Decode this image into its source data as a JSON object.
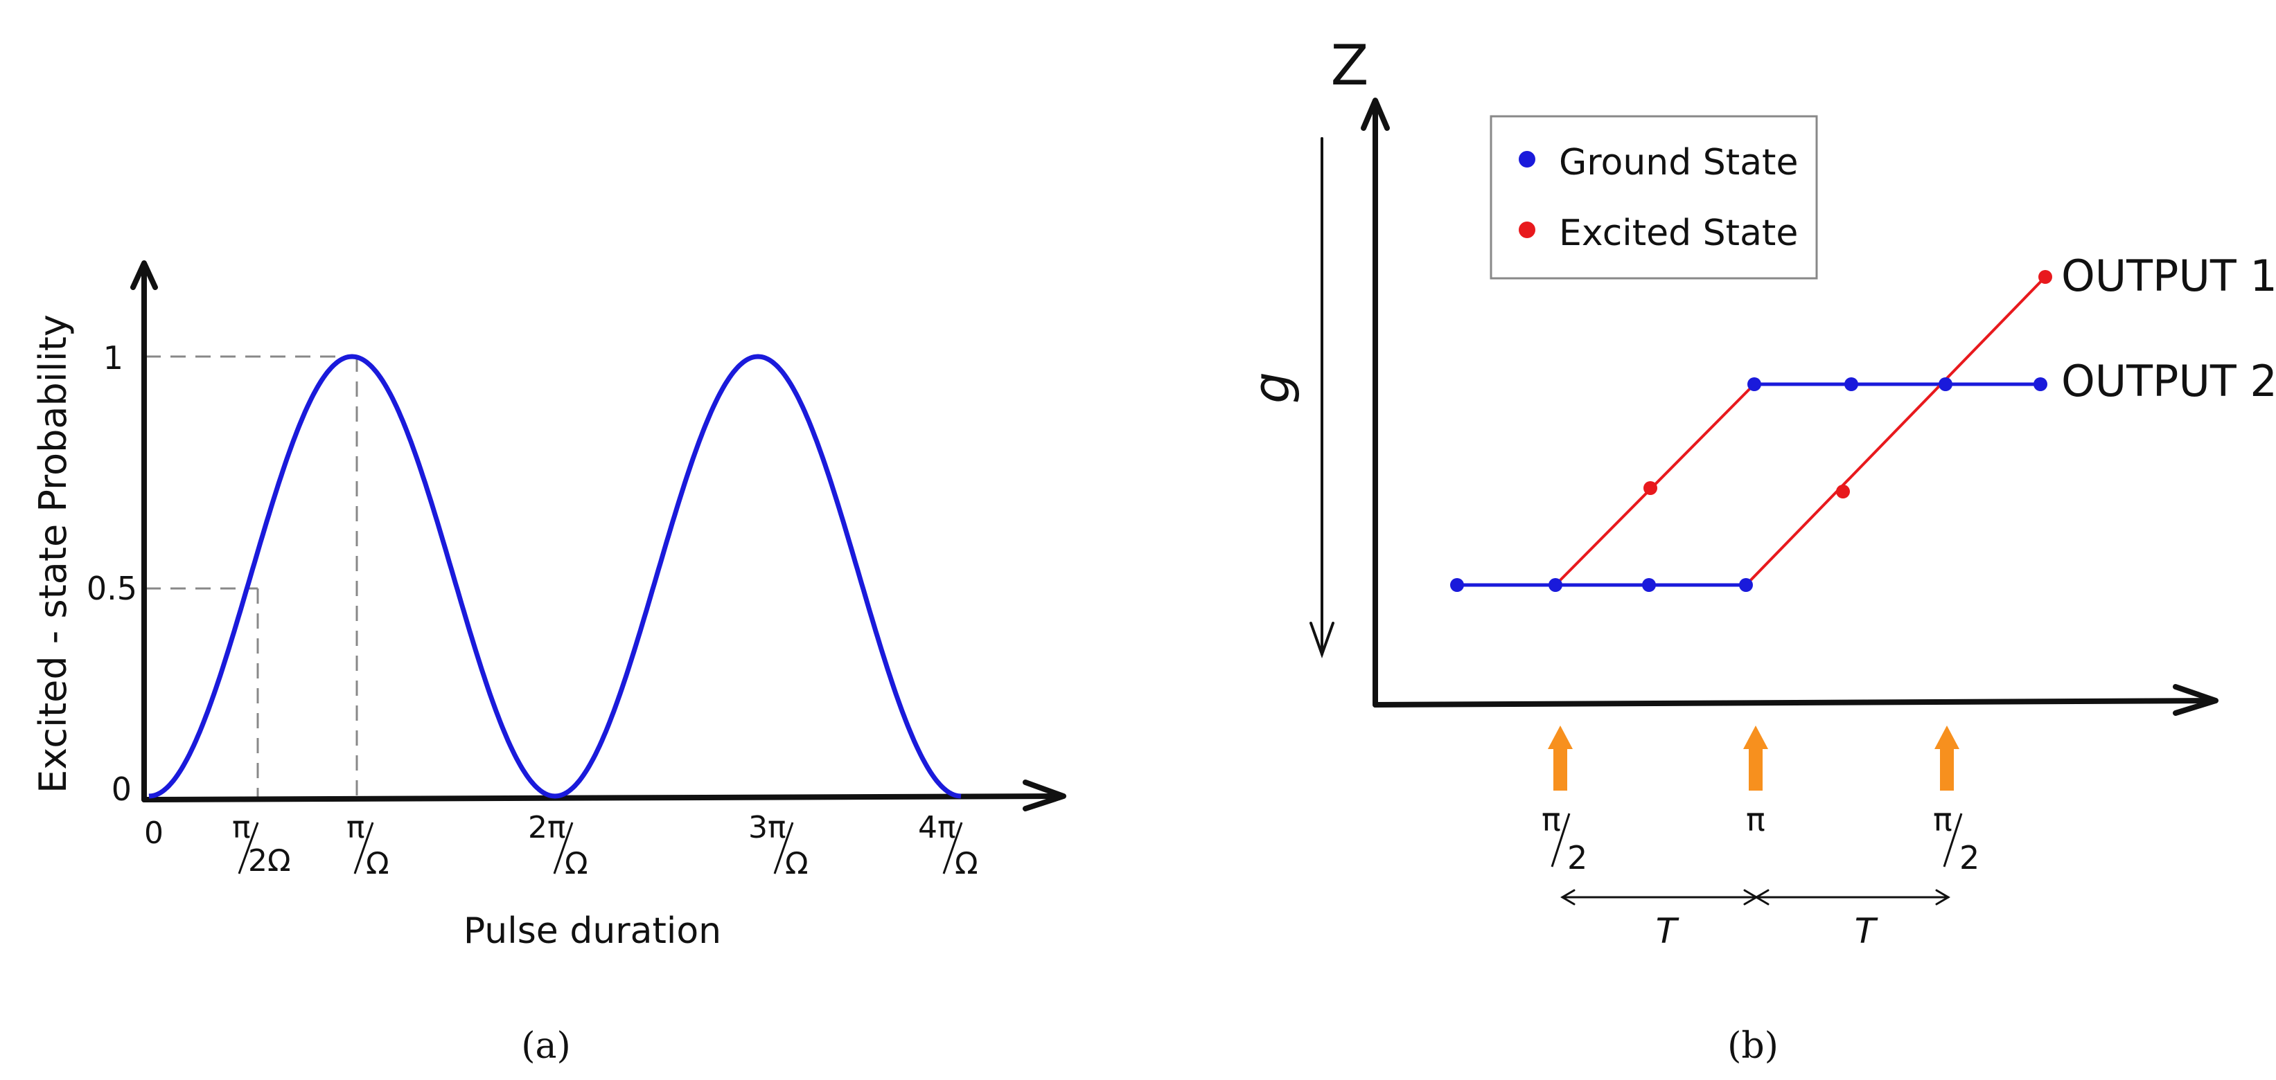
{
  "panel_a": {
    "ylabel": "Excited - state Probability",
    "xlabel": "Pulse duration",
    "y_ticks": [
      "1",
      "0.5",
      "0"
    ],
    "x_ticks": [
      {
        "num": "0",
        "den": ""
      },
      {
        "num": "π",
        "den": "2Ω"
      },
      {
        "num": "π",
        "den": "Ω"
      },
      {
        "num": "2π",
        "den": "Ω"
      },
      {
        "num": "3π",
        "den": "Ω"
      },
      {
        "num": "4π",
        "den": "Ω"
      }
    ],
    "caption": "(a)",
    "curve_color": "#1a1adb",
    "description_of_curve": "excited-state probability sin²(Ωt/2) vs pulse duration t in units of π/Ω",
    "curve_samples": {
      "x_units": "pi_over_omega",
      "x": [
        0,
        0.5,
        1,
        2,
        3,
        4
      ],
      "y": [
        0,
        0.5,
        1,
        0,
        1,
        0
      ]
    }
  },
  "panel_b": {
    "axis_y_label": "Z",
    "gravity_label": "g",
    "legend": [
      {
        "label": "Ground State",
        "color": "#1a1adb"
      },
      {
        "label": "Excited State",
        "color": "#e8191d"
      }
    ],
    "outputs": [
      "OUTPUT 1",
      "OUTPUT 2"
    ],
    "pulses": [
      {
        "num": "π",
        "den": "2",
        "color": "#f7901e"
      },
      {
        "num": "π",
        "den": "",
        "color": "#f7901e"
      },
      {
        "num": "π",
        "den": "2",
        "color": "#f7901e"
      }
    ],
    "intervals": [
      "T",
      "T"
    ],
    "caption": "(b)",
    "ground_color": "#1a1adb",
    "excited_color": "#e8191d"
  }
}
